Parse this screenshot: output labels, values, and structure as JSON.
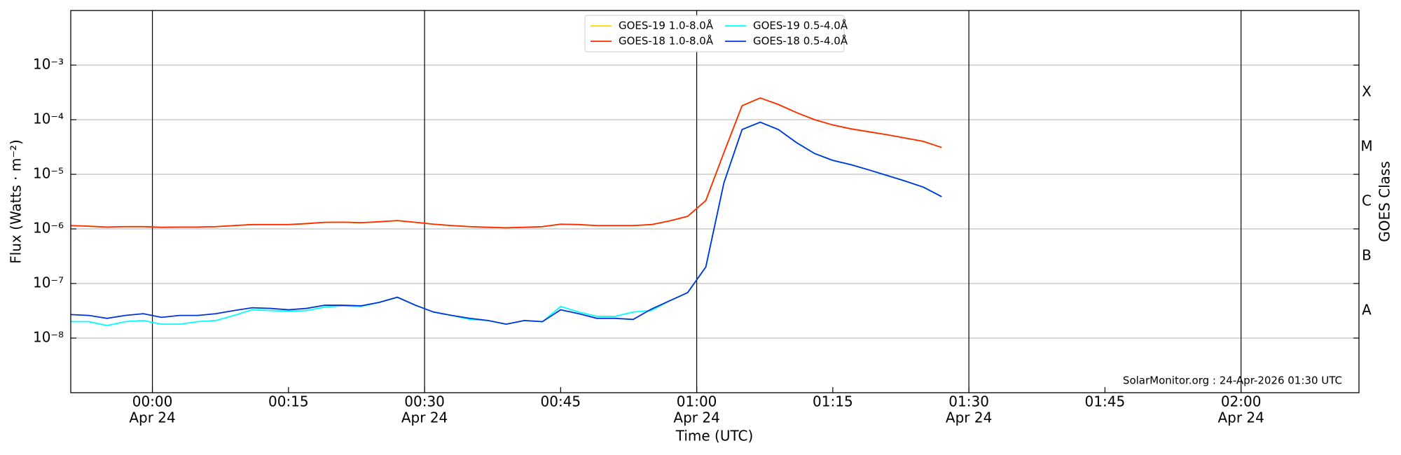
{
  "chart_data": {
    "type": "line",
    "y_label": "Flux (Watts · m⁻²)",
    "y2_label": "GOES Class",
    "x_label": "Time (UTC)",
    "annotation": "SolarMonitor.org : 24-Apr-2026 01:30 UTC",
    "log_y": true,
    "grid": true,
    "legend": "upper center",
    "xlim": [
      -9,
      133
    ],
    "xticks": [
      {
        "value": 0,
        "label": "00:00",
        "date": "Apr 24"
      },
      {
        "value": 15,
        "label": "00:15"
      },
      {
        "value": 30,
        "label": "00:30",
        "date": "Apr 24"
      },
      {
        "value": 45,
        "label": "00:45"
      },
      {
        "value": 60,
        "label": "01:00",
        "date": "Apr 24"
      },
      {
        "value": 75,
        "label": "01:15"
      },
      {
        "value": 90,
        "label": "01:30",
        "date": "Apr 24"
      },
      {
        "value": 105,
        "label": "01:45"
      },
      {
        "value": 120,
        "label": "02:00",
        "date": "Apr 24"
      }
    ],
    "ylim": [
      1e-09,
      0.01
    ],
    "yticks": [
      {
        "value": 1e-08,
        "label": "10⁻⁸"
      },
      {
        "value": 1e-07,
        "label": "10⁻⁷"
      },
      {
        "value": 1e-06,
        "label": "10⁻⁶"
      },
      {
        "value": 1e-05,
        "label": "10⁻⁵"
      },
      {
        "value": 0.0001,
        "label": "10⁻⁴"
      },
      {
        "value": 0.001,
        "label": "10⁻³"
      }
    ],
    "class_labels": [
      {
        "value": 1e-08,
        "label": "A"
      },
      {
        "value": 1e-07,
        "label": "B"
      },
      {
        "value": 1e-06,
        "label": "C"
      },
      {
        "value": 1e-05,
        "label": "M"
      },
      {
        "value": 0.0001,
        "label": "X"
      }
    ],
    "x": [
      -9,
      -7,
      -5,
      -3,
      -1,
      1,
      3,
      5,
      7,
      9,
      11,
      13,
      15,
      17,
      19,
      21,
      23,
      25,
      27,
      29,
      31,
      33,
      35,
      37,
      39,
      41,
      43,
      45,
      47,
      49,
      51,
      53,
      55,
      57,
      59,
      61,
      63,
      65,
      67,
      69,
      71,
      73,
      75,
      77,
      79,
      81,
      83,
      85,
      87
    ],
    "series": [
      {
        "name": "GOES-19 1.0-8.0Å",
        "color": "#ffd700",
        "values": [
          1.15e-06,
          1.12e-06,
          1.08e-06,
          1.1e-06,
          1.1e-06,
          1.07e-06,
          1.08e-06,
          1.08e-06,
          1.1e-06,
          1.15e-06,
          1.2e-06,
          1.2e-06,
          1.2e-06,
          1.25e-06,
          1.32e-06,
          1.33e-06,
          1.3e-06,
          1.35e-06,
          1.42e-06,
          1.32e-06,
          1.22e-06,
          1.15e-06,
          1.1e-06,
          1.07e-06,
          1.05e-06,
          1.07e-06,
          1.1e-06,
          1.22e-06,
          1.2e-06,
          1.15e-06,
          1.15e-06,
          1.15e-06,
          1.2e-06,
          1.4e-06,
          1.7e-06,
          3.3e-06,
          2.5e-05,
          0.00018,
          0.00025,
          0.00019,
          0.000135,
          0.0001,
          8e-05,
          6.8e-05,
          6e-05,
          5.3e-05,
          4.6e-05,
          4e-05,
          3.1e-05
        ]
      },
      {
        "name": "GOES-18 1.0-8.0Å",
        "color": "#ff2a00",
        "values": [
          1.15e-06,
          1.12e-06,
          1.08e-06,
          1.1e-06,
          1.1e-06,
          1.07e-06,
          1.08e-06,
          1.08e-06,
          1.1e-06,
          1.15e-06,
          1.2e-06,
          1.2e-06,
          1.2e-06,
          1.25e-06,
          1.32e-06,
          1.33e-06,
          1.3e-06,
          1.35e-06,
          1.42e-06,
          1.32e-06,
          1.22e-06,
          1.15e-06,
          1.1e-06,
          1.07e-06,
          1.05e-06,
          1.07e-06,
          1.1e-06,
          1.22e-06,
          1.2e-06,
          1.15e-06,
          1.15e-06,
          1.15e-06,
          1.2e-06,
          1.4e-06,
          1.7e-06,
          3.3e-06,
          2.5e-05,
          0.00018,
          0.00025,
          0.00019,
          0.000135,
          0.0001,
          8e-05,
          6.8e-05,
          6e-05,
          5.3e-05,
          4.6e-05,
          4e-05,
          3.1e-05
        ]
      },
      {
        "name": "GOES-19 0.5-4.0Å",
        "color": "#00ffff",
        "values": [
          2e-08,
          2e-08,
          1.7e-08,
          2e-08,
          2.1e-08,
          1.8e-08,
          1.8e-08,
          2e-08,
          2.1e-08,
          2.6e-08,
          3.3e-08,
          3.2e-08,
          3.1e-08,
          3.2e-08,
          3.7e-08,
          3.9e-08,
          3.8e-08,
          4.5e-08,
          5.6e-08,
          4e-08,
          3e-08,
          2.6e-08,
          2.2e-08,
          2.1e-08,
          1.8e-08,
          2.1e-08,
          2e-08,
          3.8e-08,
          3e-08,
          2.5e-08,
          2.5e-08,
          3e-08,
          3.2e-08,
          4.8e-08,
          6.8e-08,
          2e-07,
          7e-06,
          6.6e-05,
          9e-05,
          6.6e-05,
          3.8e-05,
          2.4e-05,
          1.8e-05,
          1.5e-05,
          1.2e-05,
          9.5e-06,
          7.5e-06,
          5.8e-06,
          3.9e-06
        ]
      },
      {
        "name": "GOES-18 0.5-4.0Å",
        "color": "#0033dd",
        "values": [
          2.7e-08,
          2.6e-08,
          2.3e-08,
          2.6e-08,
          2.8e-08,
          2.4e-08,
          2.6e-08,
          2.6e-08,
          2.8e-08,
          3.2e-08,
          3.6e-08,
          3.5e-08,
          3.3e-08,
          3.5e-08,
          4e-08,
          4e-08,
          3.9e-08,
          4.5e-08,
          5.6e-08,
          4e-08,
          3e-08,
          2.6e-08,
          2.3e-08,
          2.1e-08,
          1.8e-08,
          2.1e-08,
          2e-08,
          3.3e-08,
          2.8e-08,
          2.3e-08,
          2.3e-08,
          2.2e-08,
          3.4e-08,
          4.8e-08,
          6.8e-08,
          2e-07,
          7e-06,
          6.6e-05,
          9e-05,
          6.6e-05,
          3.8e-05,
          2.4e-05,
          1.8e-05,
          1.5e-05,
          1.2e-05,
          9.5e-06,
          7.5e-06,
          5.8e-06,
          3.9e-06
        ]
      }
    ]
  }
}
